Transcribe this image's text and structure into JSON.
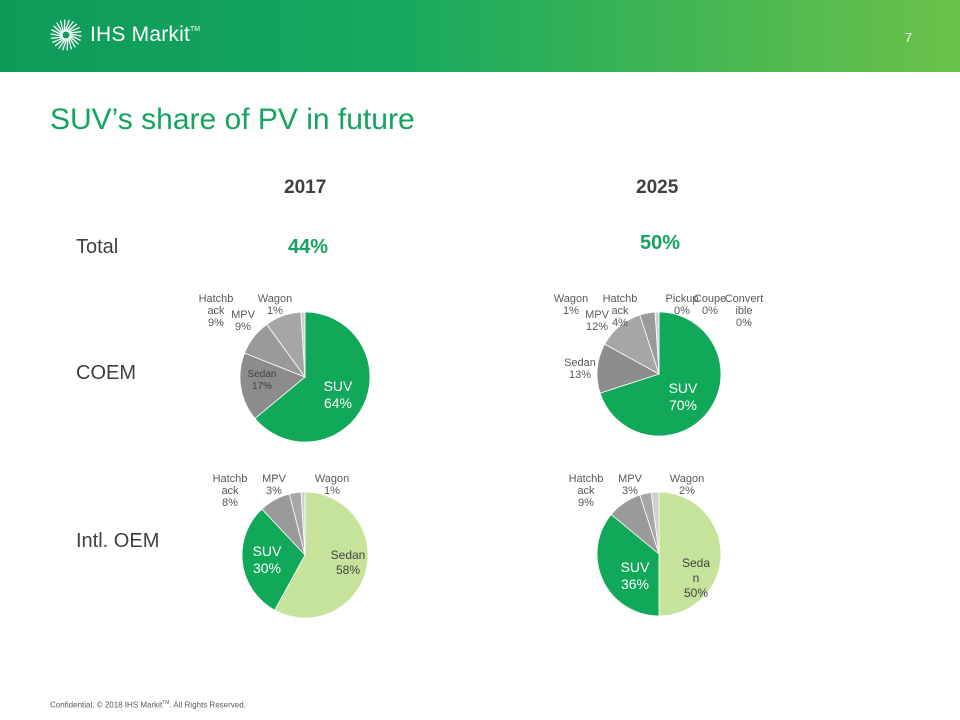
{
  "header": {
    "logo_text": "IHS Markit",
    "logo_tm": "TM",
    "page_number": "7"
  },
  "title": "SUV’s share of PV in future",
  "columns": [
    "2017",
    "2025"
  ],
  "rows": [
    "Total",
    "COEM",
    "Intl. OEM"
  ],
  "total_values": [
    "44%",
    "50%"
  ],
  "colors": {
    "suv": "#12a85a",
    "sedan_coem": "#8c8c8c",
    "sedan_intl": "#c5e39a",
    "mpv": "#a6a6a6",
    "hatchback": "#9a9a9a",
    "wagon": "#cfcfcf",
    "other": "#bfbfbf",
    "header_green": "#14a85e",
    "title_green": "#13a45d"
  },
  "chart_data": [
    {
      "type": "pie",
      "title": "COEM 2017",
      "slices": [
        {
          "name": "SUV",
          "value": 64,
          "label": "SUV\n64%"
        },
        {
          "name": "Sedan",
          "value": 17,
          "label": "Sedan\n17%"
        },
        {
          "name": "MPV",
          "value": 9,
          "label": "MPV\n9%"
        },
        {
          "name": "Hatchback",
          "value": 9,
          "label": "Hatchb\nack\n9%"
        },
        {
          "name": "Wagon",
          "value": 1,
          "label": "Wagon\n1%"
        }
      ]
    },
    {
      "type": "pie",
      "title": "COEM 2025",
      "slices": [
        {
          "name": "SUV",
          "value": 70,
          "label": "SUV\n70%"
        },
        {
          "name": "Sedan",
          "value": 13,
          "label": "Sedan\n13%"
        },
        {
          "name": "MPV",
          "value": 12,
          "label": "MPV\n12%"
        },
        {
          "name": "Hatchback",
          "value": 4,
          "label": "Hatchb\nack\n4%"
        },
        {
          "name": "Wagon",
          "value": 1,
          "label": "Wagon\n1%"
        },
        {
          "name": "Pickup",
          "value": 0,
          "label": "Pickup\n0%"
        },
        {
          "name": "Coupe",
          "value": 0,
          "label": "Coupe\n0%"
        },
        {
          "name": "Convertible",
          "value": 0,
          "label": "Convert\nible\n0%"
        }
      ]
    },
    {
      "type": "pie",
      "title": "Intl. OEM 2017",
      "slices": [
        {
          "name": "Sedan",
          "value": 58,
          "label": "Sedan\n58%"
        },
        {
          "name": "SUV",
          "value": 30,
          "label": "SUV\n30%"
        },
        {
          "name": "Hatchback",
          "value": 8,
          "label": "Hatchb\nack\n8%"
        },
        {
          "name": "MPV",
          "value": 3,
          "label": "MPV\n3%"
        },
        {
          "name": "Wagon",
          "value": 1,
          "label": "Wagon\n1%"
        }
      ]
    },
    {
      "type": "pie",
      "title": "Intl. OEM 2025",
      "slices": [
        {
          "name": "Sedan",
          "value": 50,
          "label": "Seda\nn\n50%"
        },
        {
          "name": "SUV",
          "value": 36,
          "label": "SUV\n36%"
        },
        {
          "name": "Hatchback",
          "value": 9,
          "label": "Hatchb\nack\n9%"
        },
        {
          "name": "MPV",
          "value": 3,
          "label": "MPV\n3%"
        },
        {
          "name": "Wagon",
          "value": 2,
          "label": "Wagon\n2%"
        }
      ]
    }
  ],
  "footer": {
    "text_before": "Confidential. © 2018 IHS Markit",
    "tm": "TM",
    "text_after": ". All Rights Reserved."
  }
}
